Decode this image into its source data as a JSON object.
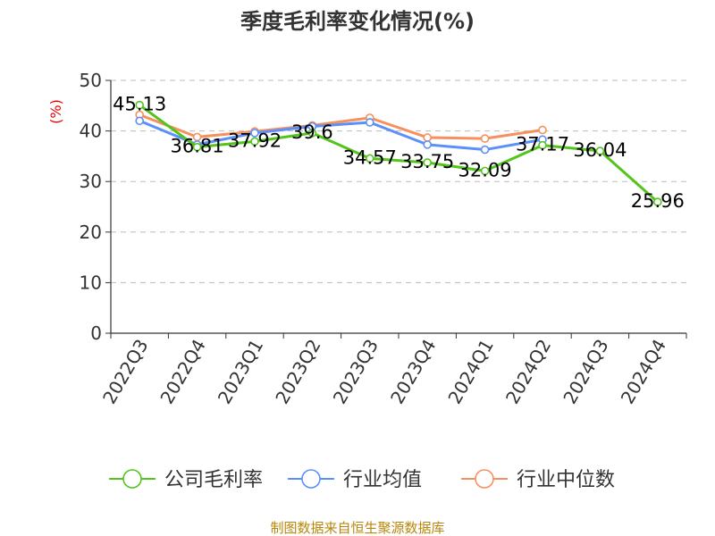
{
  "chart_data": {
    "type": "line",
    "title": "季度毛利率变化情况(%)",
    "ylabel": "(%)",
    "ylim": [
      0,
      50
    ],
    "yticks": [
      0,
      10,
      20,
      30,
      40,
      50
    ],
    "grid": true,
    "legend_position": "bottom",
    "categories": [
      "2022Q3",
      "2022Q4",
      "2023Q1",
      "2023Q2",
      "2023Q3",
      "2023Q4",
      "2024Q1",
      "2024Q2",
      "2024Q3",
      "2024Q4"
    ],
    "series": [
      {
        "name": "公司毛利率",
        "color": "#52c41a",
        "values": [
          45.13,
          36.81,
          37.92,
          39.6,
          34.57,
          33.75,
          32.09,
          37.17,
          36.04,
          25.96
        ],
        "labels": [
          "45.13",
          "36.81",
          "37.92",
          "39.6",
          "34.57",
          "33.75",
          "32.09",
          "37.17",
          "36.04",
          "25.96"
        ]
      },
      {
        "name": "行业均值",
        "color": "#5b8ff9",
        "values": [
          42.0,
          37.3,
          39.6,
          40.9,
          41.7,
          37.3,
          36.3,
          38.3,
          null,
          null
        ]
      },
      {
        "name": "行业中位数",
        "color": "#f6905e",
        "values": [
          43.2,
          38.8,
          39.9,
          41.1,
          42.6,
          38.7,
          38.5,
          40.2,
          null,
          null
        ]
      }
    ]
  },
  "footer": {
    "source": "制图数据来自恒生聚源数据库"
  }
}
